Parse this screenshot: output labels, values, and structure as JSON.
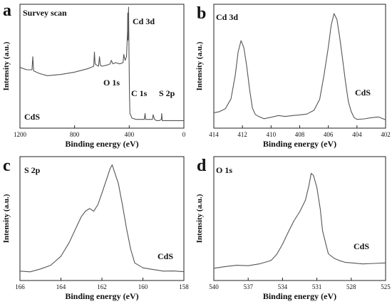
{
  "chart_data": [
    {
      "type": "line",
      "panel_letter": "a",
      "panel_label": "Survey scan",
      "sample_label": "CdS",
      "xlabel": "Binding energy (eV)",
      "ylabel": "Intensity (a.u.)",
      "xlim": [
        1200,
        0
      ],
      "x_reversed": true,
      "xticks": [
        1200,
        800,
        400,
        0
      ],
      "peak_labels": [
        {
          "text": "Cd 3d",
          "at": 405
        },
        {
          "text": "O 1s",
          "at": 531
        },
        {
          "text": "C 1s",
          "at": 284
        },
        {
          "text": "S 2p",
          "at": 162
        }
      ],
      "series": [
        {
          "x": [
            1200,
            1150,
            1112,
            1106,
            1100,
            1060,
            1000,
            900,
            800,
            700,
            660,
            655,
            650,
            640,
            625,
            618,
            612,
            600,
            560,
            540,
            531,
            520,
            500,
            470,
            445,
            440,
            436,
            430,
            420,
            412,
            411,
            409,
            405,
            402,
            398,
            395,
            380,
            350,
            320,
            300,
            290,
            284,
            280,
            260,
            240,
            230,
            225,
            215,
            200,
            180,
            165,
            162,
            158,
            140,
            120,
            100,
            80,
            60,
            40,
            20,
            10,
            0
          ],
          "y": [
            0.49,
            0.47,
            0.47,
            0.58,
            0.46,
            0.44,
            0.42,
            0.43,
            0.45,
            0.48,
            0.5,
            0.62,
            0.52,
            0.51,
            0.5,
            0.58,
            0.51,
            0.5,
            0.51,
            0.52,
            0.55,
            0.52,
            0.53,
            0.52,
            0.53,
            0.6,
            0.58,
            0.55,
            0.58,
            0.8,
            0.95,
            0.72,
            1.0,
            0.62,
            0.25,
            0.1,
            0.06,
            0.05,
            0.05,
            0.05,
            0.05,
            0.1,
            0.05,
            0.05,
            0.05,
            0.05,
            0.09,
            0.05,
            0.04,
            0.04,
            0.05,
            0.1,
            0.04,
            0.04,
            0.04,
            0.04,
            0.04,
            0.04,
            0.04,
            0.04,
            0.04,
            0.04
          ]
        }
      ]
    },
    {
      "type": "line",
      "panel_letter": "b",
      "panel_label": "Cd 3d",
      "sample_label": "CdS",
      "xlabel": "Binding energy (eV)",
      "ylabel": "Intensity (a.u.)",
      "xlim": [
        414,
        402
      ],
      "x_reversed": true,
      "xticks": [
        414,
        412,
        410,
        408,
        406,
        404,
        402
      ],
      "series": [
        {
          "x": [
            414.0,
            413.6,
            413.2,
            412.8,
            412.5,
            412.3,
            412.1,
            411.9,
            411.7,
            411.5,
            411.3,
            411.1,
            410.9,
            410.5,
            410.0,
            409.5,
            409.0,
            408.5,
            408.0,
            407.5,
            407.0,
            406.6,
            406.3,
            406.0,
            405.8,
            405.6,
            405.4,
            405.2,
            405.0,
            404.8,
            404.6,
            404.4,
            404.2,
            404.0,
            403.5,
            403.0,
            402.5,
            402.0
          ],
          "y": [
            0.11,
            0.12,
            0.14,
            0.22,
            0.42,
            0.62,
            0.72,
            0.66,
            0.5,
            0.3,
            0.14,
            0.09,
            0.08,
            0.06,
            0.07,
            0.08,
            0.07,
            0.08,
            0.09,
            0.1,
            0.13,
            0.22,
            0.42,
            0.66,
            0.85,
            0.95,
            0.9,
            0.74,
            0.55,
            0.36,
            0.2,
            0.12,
            0.07,
            0.05,
            0.05,
            0.06,
            0.07,
            0.05
          ]
        }
      ]
    },
    {
      "type": "line",
      "panel_letter": "c",
      "panel_label": "S 2p",
      "sample_label": "CdS",
      "xlabel": "Binding energy (eV)",
      "ylabel": "Intensity (a.u.)",
      "xlim": [
        166,
        158
      ],
      "x_reversed": true,
      "xticks": [
        166,
        164,
        162,
        160,
        158
      ],
      "series": [
        {
          "x": [
            166.0,
            165.5,
            165.0,
            164.5,
            164.0,
            163.6,
            163.2,
            163.0,
            162.8,
            162.6,
            162.4,
            162.2,
            162.0,
            161.8,
            161.6,
            161.5,
            161.4,
            161.2,
            161.0,
            160.8,
            160.6,
            160.4,
            160.0,
            159.5,
            159.0,
            158.5,
            158.0
          ],
          "y": [
            0.06,
            0.05,
            0.07,
            0.1,
            0.18,
            0.3,
            0.45,
            0.52,
            0.56,
            0.58,
            0.56,
            0.62,
            0.72,
            0.82,
            0.92,
            0.95,
            0.9,
            0.8,
            0.62,
            0.42,
            0.24,
            0.12,
            0.08,
            0.07,
            0.06,
            0.06,
            0.05
          ]
        }
      ]
    },
    {
      "type": "line",
      "panel_letter": "d",
      "panel_label": "O 1s",
      "sample_label": "CdS",
      "xlabel": "Binding energy (eV)",
      "ylabel": "Intensity (a.u.)",
      "xlim": [
        540,
        525
      ],
      "x_reversed": true,
      "xticks": [
        540,
        537,
        534,
        531,
        528,
        525
      ],
      "series": [
        {
          "x": [
            540.0,
            539.0,
            538.0,
            537.0,
            536.0,
            535.0,
            534.5,
            534.0,
            533.5,
            533.0,
            532.5,
            532.0,
            531.7,
            531.5,
            531.3,
            531.0,
            530.7,
            530.5,
            530.2,
            530.0,
            529.5,
            529.0,
            528.5,
            528.0,
            527.0,
            526.0,
            525.0
          ],
          "y": [
            0.08,
            0.09,
            0.1,
            0.1,
            0.12,
            0.15,
            0.2,
            0.28,
            0.38,
            0.48,
            0.56,
            0.66,
            0.78,
            0.88,
            0.86,
            0.76,
            0.58,
            0.4,
            0.28,
            0.2,
            0.16,
            0.14,
            0.13,
            0.13,
            0.12,
            0.12,
            0.12
          ]
        }
      ]
    }
  ]
}
